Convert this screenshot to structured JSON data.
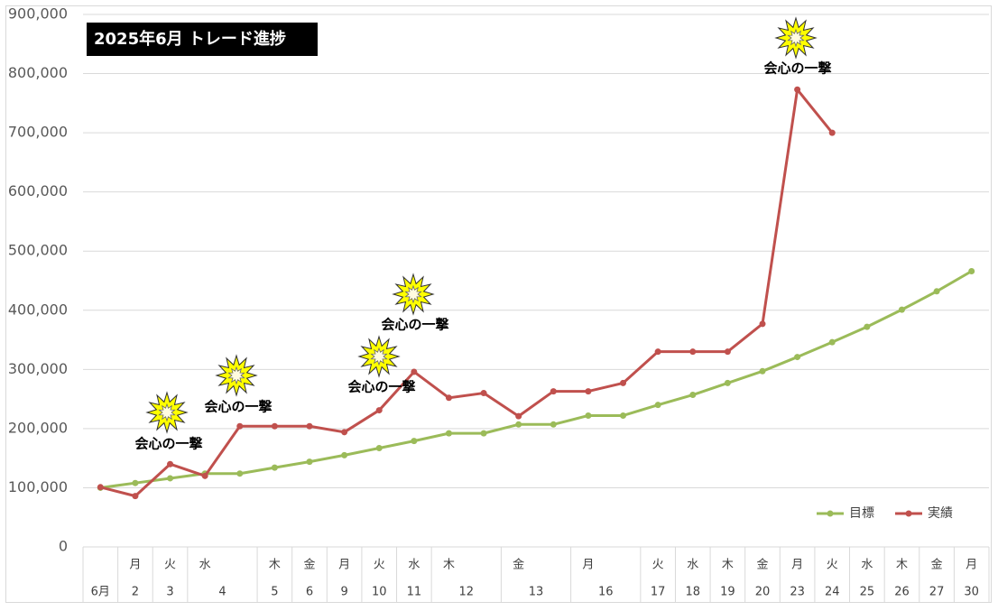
{
  "chart_data": {
    "type": "line",
    "title": "2025年6月 トレード進捗",
    "categories": [
      {
        "weekday": null,
        "day": "6月"
      },
      {
        "weekday": "月",
        "day": 2
      },
      {
        "weekday": "火",
        "day": 3
      },
      {
        "weekday": "水",
        "day": 4
      },
      null,
      {
        "weekday": "木",
        "day": 5
      },
      {
        "weekday": "金",
        "day": 6
      },
      {
        "weekday": "月",
        "day": 9
      },
      {
        "weekday": "火",
        "day": 10
      },
      {
        "weekday": "水",
        "day": 11
      },
      {
        "weekday": "木",
        "day": 12
      },
      null,
      {
        "weekday": "金",
        "day": 13
      },
      null,
      {
        "weekday": "月",
        "day": 16
      },
      null,
      {
        "weekday": "火",
        "day": 17
      },
      {
        "weekday": "水",
        "day": 18
      },
      {
        "weekday": "木",
        "day": 19
      },
      {
        "weekday": "金",
        "day": 20
      },
      {
        "weekday": "月",
        "day": 23
      },
      {
        "weekday": "火",
        "day": 24
      },
      {
        "weekday": "水",
        "day": 25
      },
      {
        "weekday": "木",
        "day": 26
      },
      {
        "weekday": "金",
        "day": 27
      },
      {
        "weekday": "月",
        "day": 30
      }
    ],
    "series": [
      {
        "name": "目標",
        "color": "#9bbb59",
        "values": [
          100000,
          108000,
          116000,
          124000,
          124000,
          134000,
          144000,
          155000,
          167000,
          179000,
          192000,
          192000,
          207000,
          207000,
          222000,
          222000,
          240000,
          257000,
          277000,
          297000,
          321000,
          346000,
          372000,
          401000,
          432000,
          466000
        ]
      },
      {
        "name": "実績",
        "color": "#c0504d",
        "values": [
          101000,
          86000,
          140000,
          120000,
          204000,
          204000,
          204000,
          194000,
          231000,
          296000,
          252000,
          260000,
          221000,
          263000,
          263000,
          277000,
          330000,
          330000,
          330000,
          377000,
          773000,
          700000,
          null,
          null,
          null,
          null
        ]
      }
    ],
    "annotations": [
      "会心の一撃",
      "会心の一撃",
      "会心の一撃",
      "会心の一撃",
      "会心の一撃"
    ],
    "ylim": [
      0,
      900000
    ],
    "yticks": [
      0,
      {
        "value": 100000,
        "label": "100,000"
      },
      {
        "value": 200000,
        "label": "200,000"
      },
      {
        "value": 300000,
        "label": "300,000"
      },
      {
        "value": 400000,
        "label": "400,000"
      },
      {
        "value": 500000,
        "label": "500,000"
      },
      {
        "value": 600000,
        "label": "600,000"
      },
      {
        "value": 700000,
        "label": "700,000"
      },
      {
        "value": 800000,
        "label": "800,000"
      },
      {
        "value": 900000,
        "label": "900,000"
      }
    ],
    "grid": true,
    "legend": "bottom-right"
  }
}
